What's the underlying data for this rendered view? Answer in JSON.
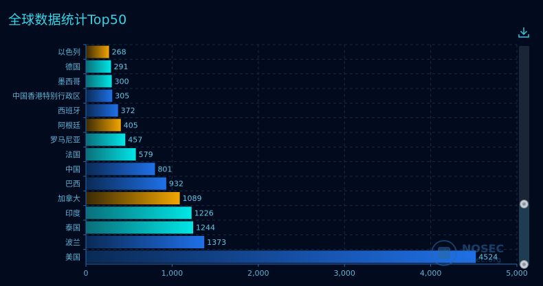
{
  "page": {
    "title": "全球数据统计Top50"
  },
  "toolbar": {
    "download_icon": "download-icon"
  },
  "watermark": {
    "line1": "NOSEC",
    "line2": "nosec.org"
  },
  "colors": {
    "background": "#020a1e",
    "title": "#32d6e6",
    "axis_label": "#4fb6d4",
    "bar_orange": "#f0a500",
    "bar_cyan": "#00e0e0",
    "bar_blue": "#1f6fe6"
  },
  "chart_data": {
    "type": "bar",
    "orientation": "horizontal",
    "title": "全球数据统计Top50",
    "categories": [
      "以色列",
      "德国",
      "墨西哥",
      "中国香港特别行政区",
      "西班牙",
      "阿根廷",
      "罗马尼亚",
      "法国",
      "中国",
      "巴西",
      "加拿大",
      "印度",
      "泰国",
      "波兰",
      "美国"
    ],
    "values": [
      268,
      291,
      300,
      305,
      372,
      405,
      457,
      579,
      801,
      932,
      1089,
      1226,
      1244,
      1373,
      4524
    ],
    "bar_colors": [
      "orange",
      "cyan",
      "cyan",
      "blue",
      "blue",
      "orange",
      "cyan",
      "cyan",
      "blue",
      "blue",
      "orange",
      "cyan",
      "cyan",
      "blue",
      "blue"
    ],
    "xlim": [
      0,
      5000
    ],
    "xticks": [
      0,
      1000,
      2000,
      3000,
      4000,
      5000
    ],
    "xtick_labels": [
      "0",
      "1,000",
      "2,000",
      "3,000",
      "4,000",
      "5,000"
    ],
    "grid": true,
    "legend": "none",
    "data_labels": true
  },
  "zoom": {
    "start_fraction": 0.0,
    "end_fraction": 0.28
  }
}
